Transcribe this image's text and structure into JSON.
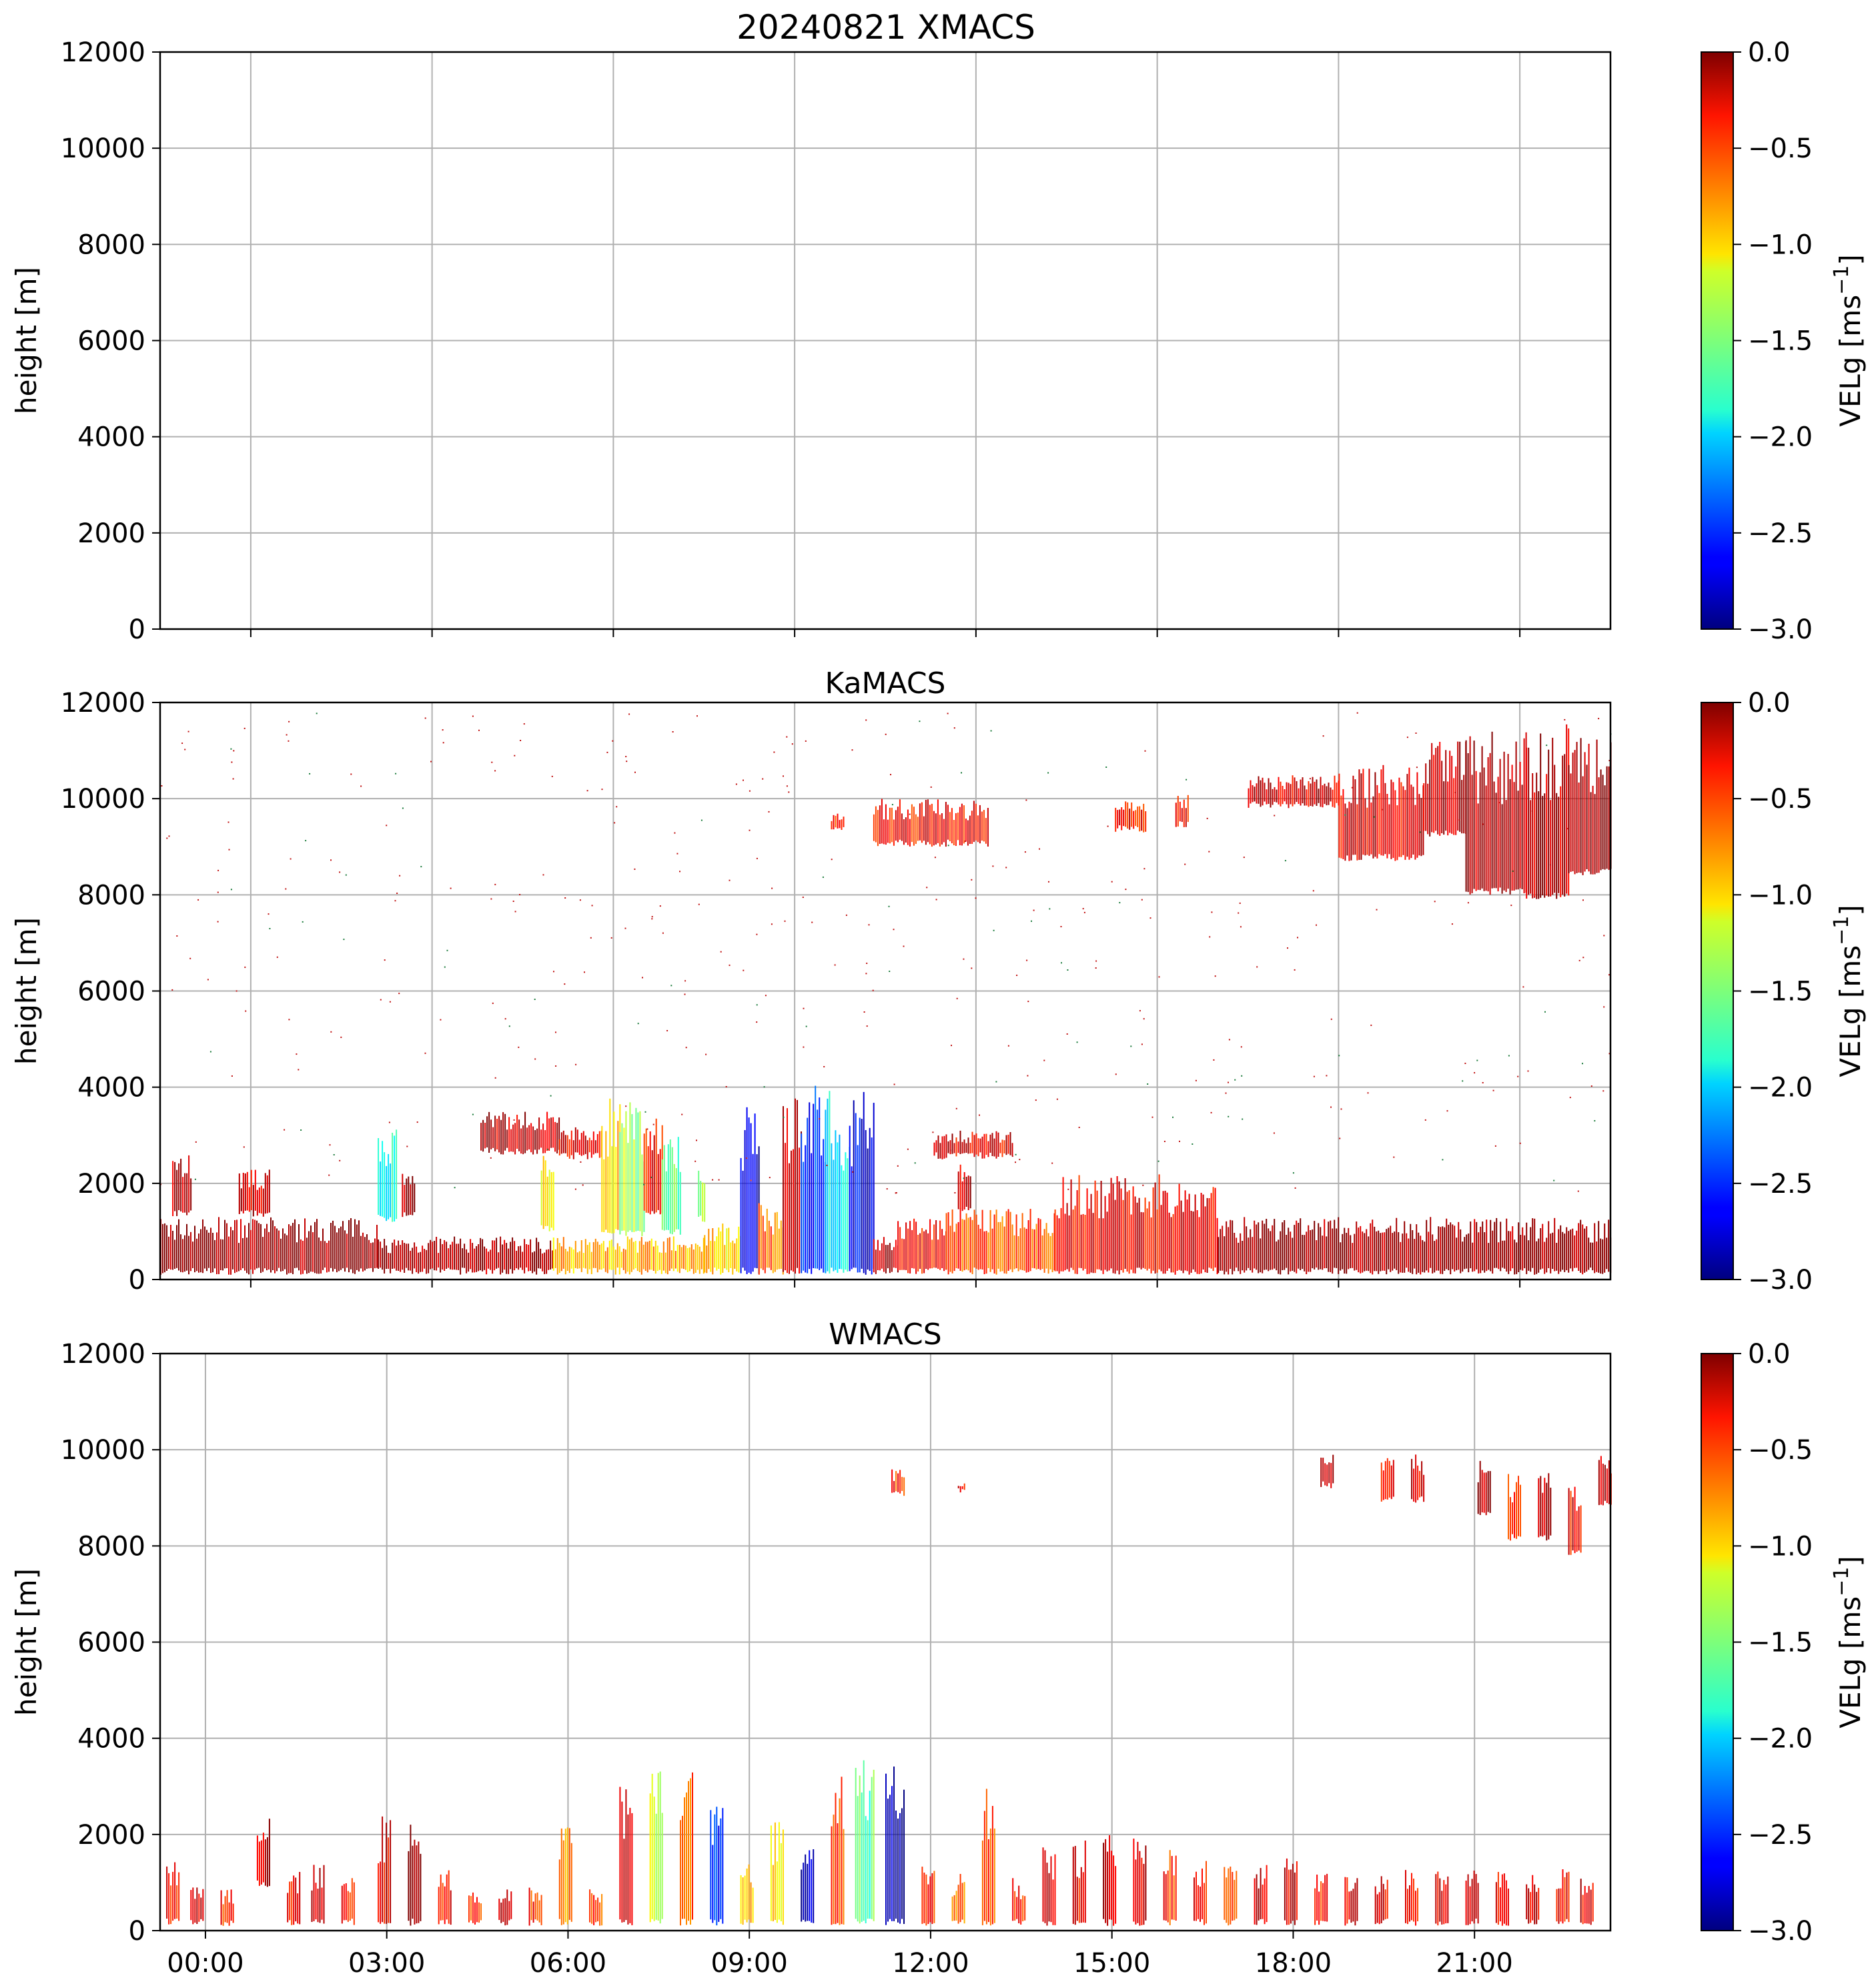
{
  "figure_title": "20240821 XMACS",
  "chart_data": [
    {
      "type": "heatmap",
      "title": "20240821 XMACS",
      "ylabel": "height [m]",
      "xlabel": "",
      "x_unit": "hour (UTC)",
      "xlim": [
        0,
        24
      ],
      "ylim": [
        0,
        12000
      ],
      "y_ticks": [
        0,
        2000,
        4000,
        6000,
        8000,
        10000,
        12000
      ],
      "x_ticks": [
        1.5,
        4.5,
        7.5,
        10.5,
        13.5,
        16.5,
        19.5,
        22.5
      ],
      "x_tick_labels": [],
      "grid": true,
      "colorbar": {
        "label": "VELg [ms",
        "label_sup": "−1",
        "label_close": "]",
        "range": [
          -3.0,
          0.0
        ],
        "ticks": [
          "0.0",
          "−0.5",
          "−1.0",
          "−1.5",
          "−2.0",
          "−2.5",
          "−3.0"
        ],
        "colormap": "jet"
      },
      "regions": []
    },
    {
      "type": "heatmap",
      "title": "KaMACS",
      "ylabel": "height [m]",
      "xlabel": "",
      "x_unit": "hour (UTC)",
      "xlim": [
        0,
        24
      ],
      "ylim": [
        0,
        12000
      ],
      "y_ticks": [
        0,
        2000,
        4000,
        6000,
        8000,
        10000,
        12000
      ],
      "x_ticks": [
        1.5,
        4.5,
        7.5,
        10.5,
        13.5,
        16.5,
        19.5,
        22.5
      ],
      "x_tick_labels": [],
      "grid": true,
      "colorbar": {
        "label": "VELg [ms",
        "label_sup": "−1",
        "label_close": "]",
        "range": [
          -3.0,
          0.0
        ],
        "ticks": [
          "0.0",
          "−0.5",
          "−1.0",
          "−1.5",
          "−2.0",
          "−2.5",
          "−3.0"
        ],
        "colormap": "jet"
      },
      "regions": [
        {
          "t0": 0.0,
          "t1": 3.6,
          "h0": 100,
          "h1": 1300,
          "v": -0.05
        },
        {
          "t0": 0.2,
          "t1": 0.5,
          "h0": 1300,
          "h1": 2700,
          "v": -0.15
        },
        {
          "t0": 1.3,
          "t1": 1.8,
          "h0": 1300,
          "h1": 2300,
          "v": -0.25
        },
        {
          "t0": 3.6,
          "t1": 3.9,
          "h0": 1200,
          "h1": 3200,
          "v": -1.8
        },
        {
          "t0": 4.0,
          "t1": 4.2,
          "h0": 1300,
          "h1": 2200,
          "v": -0.1
        },
        {
          "t0": 3.6,
          "t1": 6.5,
          "h0": 100,
          "h1": 900,
          "v": -0.1
        },
        {
          "t0": 5.3,
          "t1": 6.6,
          "h0": 2600,
          "h1": 3500,
          "v": -0.2
        },
        {
          "t0": 6.3,
          "t1": 6.5,
          "h0": 1000,
          "h1": 2600,
          "v": -1.0
        },
        {
          "t0": 6.6,
          "t1": 7.3,
          "h0": 2500,
          "h1": 3200,
          "v": -0.3
        },
        {
          "t0": 6.5,
          "t1": 9.0,
          "h0": 100,
          "h1": 900,
          "v": -0.9
        },
        {
          "t0": 7.3,
          "t1": 7.6,
          "h0": 900,
          "h1": 3800,
          "v": -1.0
        },
        {
          "t0": 7.6,
          "t1": 8.0,
          "h0": 900,
          "h1": 3700,
          "v": -1.4
        },
        {
          "t0": 8.0,
          "t1": 8.3,
          "h0": 1300,
          "h1": 3500,
          "v": -0.4
        },
        {
          "t0": 8.3,
          "t1": 8.6,
          "h0": 900,
          "h1": 3100,
          "v": -1.6
        },
        {
          "t0": 8.9,
          "t1": 9.0,
          "h0": 1200,
          "h1": 2300,
          "v": -1.3
        },
        {
          "t0": 9.0,
          "t1": 9.6,
          "h0": 100,
          "h1": 1200,
          "v": -1.0
        },
        {
          "t0": 9.6,
          "t1": 9.9,
          "h0": 100,
          "h1": 3700,
          "v": -2.8
        },
        {
          "t0": 9.9,
          "t1": 10.3,
          "h0": 100,
          "h1": 1600,
          "v": -0.7
        },
        {
          "t0": 10.3,
          "t1": 10.6,
          "h0": 100,
          "h1": 4200,
          "v": -0.2
        },
        {
          "t0": 10.6,
          "t1": 11.0,
          "h0": 100,
          "h1": 4100,
          "v": -2.5
        },
        {
          "t0": 11.0,
          "t1": 11.4,
          "h0": 100,
          "h1": 4000,
          "v": -1.9
        },
        {
          "t0": 11.4,
          "t1": 11.8,
          "h0": 100,
          "h1": 4000,
          "v": -2.7
        },
        {
          "t0": 11.8,
          "t1": 12.2,
          "h0": 100,
          "h1": 900,
          "v": -0.2
        },
        {
          "t0": 12.2,
          "t1": 13.0,
          "h0": 100,
          "h1": 1300,
          "v": -0.4
        },
        {
          "t0": 12.8,
          "t1": 14.1,
          "h0": 2500,
          "h1": 3100,
          "v": -0.3
        },
        {
          "t0": 13.2,
          "t1": 13.4,
          "h0": 1400,
          "h1": 2500,
          "v": -0.2
        },
        {
          "t0": 13.0,
          "t1": 14.8,
          "h0": 100,
          "h1": 1500,
          "v": -0.6
        },
        {
          "t0": 14.8,
          "t1": 17.5,
          "h0": 100,
          "h1": 2200,
          "v": -0.35
        },
        {
          "t0": 17.5,
          "t1": 24.0,
          "h0": 100,
          "h1": 1300,
          "v": -0.05
        },
        {
          "t0": 11.8,
          "t1": 13.7,
          "h0": 9000,
          "h1": 10000,
          "v": -0.4
        },
        {
          "t0": 11.1,
          "t1": 11.3,
          "h0": 9300,
          "h1": 9700,
          "v": -0.5
        },
        {
          "t0": 15.8,
          "t1": 16.3,
          "h0": 9300,
          "h1": 10000,
          "v": -0.4
        },
        {
          "t0": 16.8,
          "t1": 17.0,
          "h0": 9400,
          "h1": 10100,
          "v": -0.4
        },
        {
          "t0": 18.0,
          "t1": 19.5,
          "h0": 9800,
          "h1": 10500,
          "v": -0.25
        },
        {
          "t0": 19.5,
          "t1": 20.9,
          "h0": 8700,
          "h1": 10700,
          "v": -0.3
        },
        {
          "t0": 20.9,
          "t1": 21.6,
          "h0": 9200,
          "h1": 11200,
          "v": -0.2
        },
        {
          "t0": 21.6,
          "t1": 22.6,
          "h0": 8000,
          "h1": 11400,
          "v": -0.15
        },
        {
          "t0": 22.6,
          "t1": 23.3,
          "h0": 7900,
          "h1": 11600,
          "v": -0.2
        },
        {
          "t0": 23.3,
          "t1": 24.0,
          "h0": 8400,
          "h1": 11300,
          "v": -0.1
        }
      ]
    },
    {
      "type": "heatmap",
      "title": "WMACS",
      "ylabel": "height [m]",
      "xlabel": "",
      "x_unit": "hour (UTC)",
      "xlim": [
        0,
        24
      ],
      "ylim": [
        0,
        12000
      ],
      "y_ticks": [
        0,
        2000,
        4000,
        6000,
        8000,
        10000,
        12000
      ],
      "x_ticks": [
        0.75,
        3.75,
        6.75,
        9.75,
        12.75,
        15.75,
        18.75,
        21.75
      ],
      "x_tick_labels": [
        "00:00",
        "03:00",
        "06:00",
        "09:00",
        "12:00",
        "15:00",
        "18:00",
        "21:00"
      ],
      "grid": true,
      "colorbar": {
        "label": "VELg [ms",
        "label_sup": "−1",
        "label_close": "]",
        "range": [
          -3.0,
          0.0
        ],
        "ticks": [
          "0.0",
          "−0.5",
          "−1.0",
          "−1.5",
          "−2.0",
          "−2.5",
          "−3.0"
        ],
        "colormap": "jet"
      },
      "regions": [
        {
          "t0": 0.1,
          "t1": 0.3,
          "h0": 100,
          "h1": 1500,
          "v": -0.4
        },
        {
          "t0": 0.5,
          "t1": 0.7,
          "h0": 100,
          "h1": 900,
          "v": -0.3
        },
        {
          "t0": 1.0,
          "t1": 1.2,
          "h0": 100,
          "h1": 900,
          "v": -0.5
        },
        {
          "t0": 1.6,
          "t1": 1.8,
          "h0": 900,
          "h1": 2400,
          "v": -0.2
        },
        {
          "t0": 2.1,
          "t1": 2.3,
          "h0": 100,
          "h1": 1300,
          "v": -0.4
        },
        {
          "t0": 2.5,
          "t1": 2.7,
          "h0": 100,
          "h1": 1400,
          "v": -0.2
        },
        {
          "t0": 3.0,
          "t1": 3.2,
          "h0": 100,
          "h1": 1200,
          "v": -0.5
        },
        {
          "t0": 3.6,
          "t1": 3.8,
          "h0": 100,
          "h1": 2400,
          "v": -0.3
        },
        {
          "t0": 4.1,
          "t1": 4.3,
          "h0": 100,
          "h1": 2300,
          "v": -0.05
        },
        {
          "t0": 4.6,
          "t1": 4.8,
          "h0": 100,
          "h1": 1300,
          "v": -0.4
        },
        {
          "t0": 5.1,
          "t1": 5.3,
          "h0": 100,
          "h1": 900,
          "v": -0.6
        },
        {
          "t0": 5.6,
          "t1": 5.8,
          "h0": 100,
          "h1": 900,
          "v": -0.3
        },
        {
          "t0": 6.1,
          "t1": 6.3,
          "h0": 100,
          "h1": 900,
          "v": -0.5
        },
        {
          "t0": 6.6,
          "t1": 6.8,
          "h0": 100,
          "h1": 2200,
          "v": -0.8
        },
        {
          "t0": 7.1,
          "t1": 7.3,
          "h0": 100,
          "h1": 900,
          "v": -0.6
        },
        {
          "t0": 7.6,
          "t1": 7.8,
          "h0": 100,
          "h1": 3000,
          "v": -0.4
        },
        {
          "t0": 8.1,
          "t1": 8.3,
          "h0": 100,
          "h1": 3500,
          "v": -1.3
        },
        {
          "t0": 8.6,
          "t1": 8.8,
          "h0": 100,
          "h1": 3600,
          "v": -0.7
        },
        {
          "t0": 9.1,
          "t1": 9.3,
          "h0": 100,
          "h1": 2700,
          "v": -2.5
        },
        {
          "t0": 9.6,
          "t1": 9.8,
          "h0": 100,
          "h1": 1400,
          "v": -0.9
        },
        {
          "t0": 10.1,
          "t1": 10.3,
          "h0": 100,
          "h1": 2300,
          "v": -1.1
        },
        {
          "t0": 10.6,
          "t1": 10.8,
          "h0": 100,
          "h1": 1700,
          "v": -2.8
        },
        {
          "t0": 11.1,
          "t1": 11.3,
          "h0": 100,
          "h1": 3300,
          "v": -0.6
        },
        {
          "t0": 11.5,
          "t1": 11.8,
          "h0": 100,
          "h1": 3800,
          "v": -1.6
        },
        {
          "t0": 12.0,
          "t1": 12.3,
          "h0": 100,
          "h1": 4000,
          "v": -2.9
        },
        {
          "t0": 12.6,
          "t1": 12.8,
          "h0": 100,
          "h1": 1400,
          "v": -0.5
        },
        {
          "t0": 13.1,
          "t1": 13.3,
          "h0": 100,
          "h1": 1200,
          "v": -0.7
        },
        {
          "t0": 13.6,
          "t1": 13.8,
          "h0": 100,
          "h1": 3000,
          "v": -0.6
        },
        {
          "t0": 14.1,
          "t1": 14.3,
          "h0": 100,
          "h1": 1100,
          "v": -0.5
        },
        {
          "t0": 14.6,
          "t1": 14.8,
          "h0": 100,
          "h1": 1800,
          "v": -0.2
        },
        {
          "t0": 15.1,
          "t1": 15.3,
          "h0": 100,
          "h1": 1900,
          "v": -0.4
        },
        {
          "t0": 15.6,
          "t1": 15.8,
          "h0": 100,
          "h1": 2100,
          "v": -0.15
        },
        {
          "t0": 16.1,
          "t1": 16.3,
          "h0": 100,
          "h1": 2000,
          "v": -0.3
        },
        {
          "t0": 16.6,
          "t1": 16.8,
          "h0": 100,
          "h1": 1800,
          "v": -0.5
        },
        {
          "t0": 17.1,
          "t1": 17.3,
          "h0": 100,
          "h1": 1500,
          "v": -0.4
        },
        {
          "t0": 17.6,
          "t1": 17.8,
          "h0": 100,
          "h1": 1500,
          "v": -0.5
        },
        {
          "t0": 18.1,
          "t1": 18.3,
          "h0": 100,
          "h1": 1500,
          "v": -0.2
        },
        {
          "t0": 18.6,
          "t1": 18.8,
          "h0": 100,
          "h1": 1500,
          "v": -0.3
        },
        {
          "t0": 19.1,
          "t1": 19.3,
          "h0": 100,
          "h1": 1200,
          "v": -0.4
        },
        {
          "t0": 19.6,
          "t1": 19.8,
          "h0": 100,
          "h1": 1200,
          "v": -0.3
        },
        {
          "t0": 20.1,
          "t1": 20.3,
          "h0": 100,
          "h1": 1200,
          "v": -0.3
        },
        {
          "t0": 20.6,
          "t1": 20.8,
          "h0": 100,
          "h1": 1300,
          "v": -0.4
        },
        {
          "t0": 21.1,
          "t1": 21.3,
          "h0": 100,
          "h1": 1300,
          "v": -0.3
        },
        {
          "t0": 21.6,
          "t1": 21.8,
          "h0": 100,
          "h1": 1300,
          "v": -0.3
        },
        {
          "t0": 22.1,
          "t1": 22.3,
          "h0": 100,
          "h1": 1300,
          "v": -0.4
        },
        {
          "t0": 22.6,
          "t1": 22.8,
          "h0": 100,
          "h1": 1300,
          "v": -0.3
        },
        {
          "t0": 23.1,
          "t1": 23.3,
          "h0": 100,
          "h1": 1300,
          "v": -0.4
        },
        {
          "t0": 23.5,
          "t1": 23.7,
          "h0": 100,
          "h1": 1100,
          "v": -0.3
        },
        {
          "t0": 12.1,
          "t1": 12.3,
          "h0": 9000,
          "h1": 9600,
          "v": -0.5
        },
        {
          "t0": 13.2,
          "t1": 13.3,
          "h0": 9100,
          "h1": 9300,
          "v": -0.4
        },
        {
          "t0": 19.2,
          "t1": 19.4,
          "h0": 9200,
          "h1": 9900,
          "v": -0.2
        },
        {
          "t0": 20.2,
          "t1": 20.4,
          "h0": 8900,
          "h1": 9900,
          "v": -0.35
        },
        {
          "t0": 20.7,
          "t1": 20.9,
          "h0": 8900,
          "h1": 9900,
          "v": -0.3
        },
        {
          "t0": 21.8,
          "t1": 22.0,
          "h0": 8600,
          "h1": 9900,
          "v": -0.1
        },
        {
          "t0": 22.3,
          "t1": 22.5,
          "h0": 8100,
          "h1": 9500,
          "v": -0.45
        },
        {
          "t0": 22.8,
          "t1": 23.0,
          "h0": 8100,
          "h1": 9900,
          "v": -0.2
        },
        {
          "t0": 23.3,
          "t1": 23.5,
          "h0": 7800,
          "h1": 9400,
          "v": -0.35
        },
        {
          "t0": 23.8,
          "t1": 24.0,
          "h0": 8800,
          "h1": 9900,
          "v": -0.25
        }
      ]
    }
  ]
}
